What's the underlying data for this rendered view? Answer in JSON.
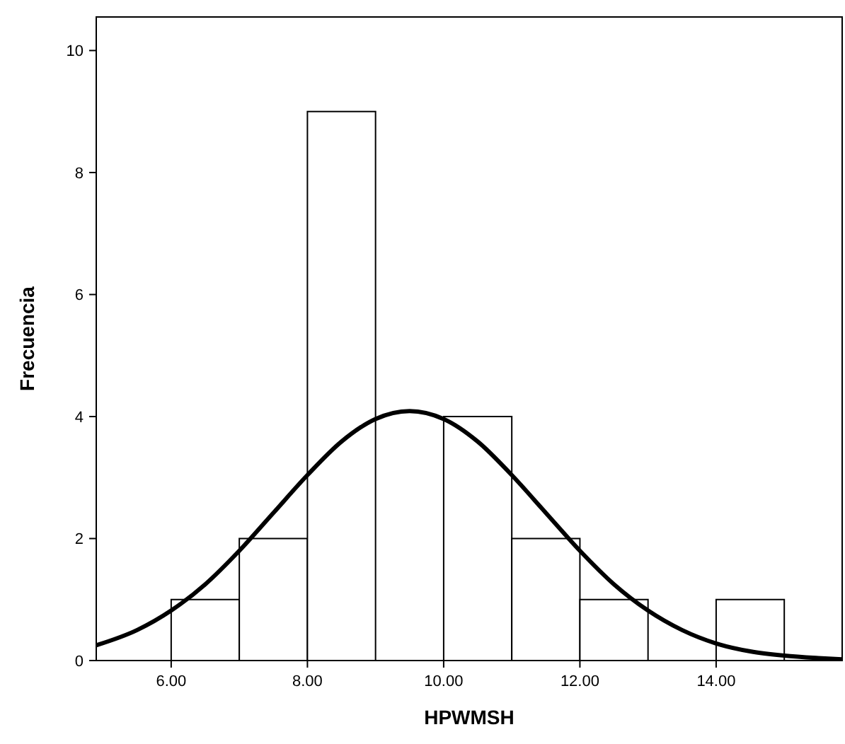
{
  "chart_data": {
    "type": "histogram",
    "xlabel": "HPWMSH",
    "ylabel": "Frecuencia",
    "bins": [
      6,
      7,
      8,
      9,
      10,
      11,
      12,
      13,
      14,
      15
    ],
    "values": [
      1,
      2,
      9,
      0,
      4,
      2,
      1,
      0,
      1
    ],
    "color": "#ffffff",
    "series": [
      {
        "type": "line",
        "color": "#000000",
        "x": [
          4.9,
          5.5,
          6,
          6.5,
          7,
          7.5,
          8,
          8.5,
          9,
          9.5,
          10,
          10.5,
          11,
          11.5,
          12,
          12.5,
          13,
          13.5,
          14,
          14.5,
          15,
          15.5,
          15.85
        ],
        "values": [
          0.25,
          0.5,
          0.82,
          1.25,
          1.8,
          2.42,
          3.04,
          3.59,
          3.96,
          4.09,
          3.96,
          3.59,
          3.04,
          2.42,
          1.8,
          1.25,
          0.82,
          0.5,
          0.28,
          0.15,
          0.08,
          0.04,
          0.02
        ]
      }
    ],
    "xlim": [
      4.9,
      15.85
    ],
    "xticks": [
      {
        "value": 6,
        "label": "6.00"
      },
      {
        "value": 8,
        "label": "8.00"
      },
      {
        "value": 10,
        "label": "10.00"
      },
      {
        "value": 12,
        "label": "12.00"
      },
      {
        "value": 14,
        "label": "14.00"
      }
    ],
    "ylim": [
      0,
      10.55
    ],
    "yticks": [
      0,
      2,
      4,
      6,
      8,
      10
    ],
    "grid": false
  }
}
